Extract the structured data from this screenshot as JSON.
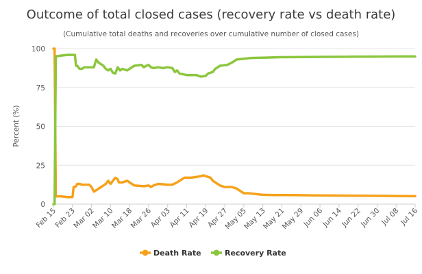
{
  "chart_data": {
    "type": "line",
    "title": "Outcome of total closed cases (recovery rate vs death rate)",
    "subtitle": "(Cumulative total deaths and recoveries over cumulative number of closed cases)",
    "xlabel": "",
    "ylabel": "Percent (%)",
    "ylim": [
      0,
      100
    ],
    "yticks": [
      0,
      25,
      50,
      75,
      100
    ],
    "x_tick_labels": [
      "Feb 15",
      "Feb 23",
      "Mar 02",
      "Mar 10",
      "Mar 18",
      "Mar 26",
      "Apr 03",
      "Apr 11",
      "Apr 19",
      "Apr 27",
      "May 05",
      "May 13",
      "May 21",
      "May 29",
      "Jun 06",
      "Jun 14",
      "Jun 22",
      "Jun 30",
      "Jul 08",
      "Jul 16"
    ],
    "x_range_days": [
      0,
      152
    ],
    "grid": true,
    "legend_position": "bottom-center",
    "series": [
      {
        "name": "Death Rate",
        "color": "#f6a11a",
        "points": [
          [
            0,
            100
          ],
          [
            0.5,
            100
          ],
          [
            1,
            5
          ],
          [
            3,
            5
          ],
          [
            6,
            4.5
          ],
          [
            8,
            4.5
          ],
          [
            8.5,
            11
          ],
          [
            9.5,
            11.5
          ],
          [
            10,
            13
          ],
          [
            11,
            13
          ],
          [
            12,
            12.5
          ],
          [
            15,
            12.5
          ],
          [
            16,
            11
          ],
          [
            17,
            8
          ],
          [
            18,
            9
          ],
          [
            20,
            11
          ],
          [
            21,
            12
          ],
          [
            22,
            13
          ],
          [
            23,
            15
          ],
          [
            24,
            13
          ],
          [
            25,
            15
          ],
          [
            26,
            17
          ],
          [
            27,
            16
          ],
          [
            27.5,
            14
          ],
          [
            29,
            14
          ],
          [
            31,
            15
          ],
          [
            33,
            13
          ],
          [
            34,
            12
          ],
          [
            38,
            11.5
          ],
          [
            40,
            12
          ],
          [
            41,
            11
          ],
          [
            42,
            12
          ],
          [
            44,
            13
          ],
          [
            48,
            12.5
          ],
          [
            50,
            12.5
          ],
          [
            52,
            14
          ],
          [
            54,
            16
          ],
          [
            55,
            17
          ],
          [
            58,
            17
          ],
          [
            60,
            17.5
          ],
          [
            62,
            18
          ],
          [
            63,
            18.5
          ],
          [
            66,
            17
          ],
          [
            67,
            15
          ],
          [
            70,
            12
          ],
          [
            72,
            11
          ],
          [
            75,
            11
          ],
          [
            77,
            10
          ],
          [
            80,
            7
          ],
          [
            82,
            7
          ],
          [
            85,
            6.5
          ],
          [
            88,
            6
          ],
          [
            93,
            5.8
          ],
          [
            100,
            5.8
          ],
          [
            110,
            5.6
          ],
          [
            120,
            5.5
          ],
          [
            130,
            5.4
          ],
          [
            140,
            5.3
          ],
          [
            145,
            5.2
          ],
          [
            152,
            5.1
          ]
        ]
      },
      {
        "name": "Recovery Rate",
        "color": "#8cc63e",
        "points": [
          [
            0,
            0
          ],
          [
            0.5,
            0
          ],
          [
            1,
            95
          ],
          [
            3,
            95.5
          ],
          [
            6,
            96
          ],
          [
            9,
            96
          ],
          [
            9.5,
            89
          ],
          [
            10,
            89
          ],
          [
            11,
            87
          ],
          [
            12,
            87
          ],
          [
            13,
            88
          ],
          [
            17,
            88
          ],
          [
            18,
            93
          ],
          [
            19,
            91
          ],
          [
            20,
            90
          ],
          [
            21,
            89
          ],
          [
            22,
            87
          ],
          [
            23,
            86
          ],
          [
            24,
            87
          ],
          [
            25,
            84.5
          ],
          [
            26,
            84
          ],
          [
            27,
            88
          ],
          [
            28,
            86
          ],
          [
            29,
            87
          ],
          [
            31,
            86
          ],
          [
            33,
            88
          ],
          [
            34,
            89
          ],
          [
            37,
            89.5
          ],
          [
            38,
            88
          ],
          [
            39,
            89
          ],
          [
            40,
            89.5
          ],
          [
            41,
            88
          ],
          [
            42,
            87.5
          ],
          [
            44,
            88
          ],
          [
            46,
            87.5
          ],
          [
            48,
            88
          ],
          [
            50,
            87.5
          ],
          [
            51,
            85
          ],
          [
            52,
            86
          ],
          [
            53,
            84
          ],
          [
            56,
            83
          ],
          [
            60,
            83
          ],
          [
            62,
            82
          ],
          [
            64,
            82.5
          ],
          [
            65,
            84
          ],
          [
            67,
            85
          ],
          [
            68,
            87
          ],
          [
            70,
            89
          ],
          [
            73,
            89.5
          ],
          [
            75,
            91
          ],
          [
            77,
            93
          ],
          [
            80,
            93.5
          ],
          [
            83,
            94
          ],
          [
            88,
            94.2
          ],
          [
            95,
            94.5
          ],
          [
            105,
            94.6
          ],
          [
            115,
            94.7
          ],
          [
            125,
            94.8
          ],
          [
            135,
            94.9
          ],
          [
            145,
            95
          ],
          [
            152,
            95
          ]
        ]
      }
    ]
  }
}
